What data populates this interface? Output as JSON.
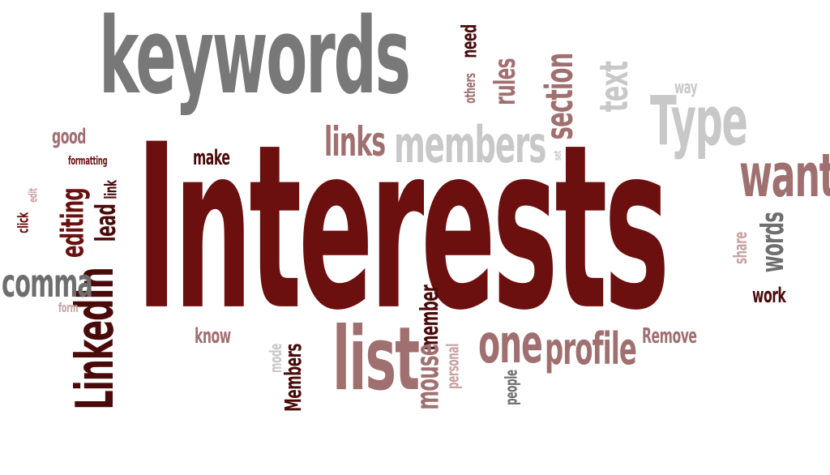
{
  "colors": {
    "gray": "#7a7a7a",
    "light_gray": "#c8c8c8",
    "dark_red": "#6b0f0f",
    "deep_red": "#4a0a0a",
    "rose": "#a07070",
    "pale_rose": "#c9a2a2"
  },
  "words": [
    {
      "text": "keywords",
      "color": "#787878",
      "weight": 200,
      "vertical": false
    },
    {
      "text": "Interests",
      "color": "#6b0f0f",
      "weight": 300,
      "vertical": false
    },
    {
      "text": "need",
      "color": "#4a0a0a",
      "weight": 20,
      "vertical": true
    },
    {
      "text": "others",
      "color": "#a07070",
      "weight": 14,
      "vertical": true
    },
    {
      "text": "rules",
      "color": "#a07070",
      "weight": 28,
      "vertical": true
    },
    {
      "text": "section",
      "color": "#a07070",
      "weight": 40,
      "vertical": true
    },
    {
      "text": "text",
      "color": "#c8c8c8",
      "weight": 40,
      "vertical": true
    },
    {
      "text": "way",
      "color": "#c8c8c8",
      "weight": 16,
      "vertical": false
    },
    {
      "text": "Type",
      "color": "#c8c8c8",
      "weight": 60,
      "vertical": false
    },
    {
      "text": "links",
      "color": "#a07070",
      "weight": 38,
      "vertical": false
    },
    {
      "text": "members",
      "color": "#c8c8c8",
      "weight": 50,
      "vertical": false
    },
    {
      "text": "set",
      "color": "#c8c8c8",
      "weight": 10,
      "vertical": true
    },
    {
      "text": "want",
      "color": "#a07070",
      "weight": 55,
      "vertical": false
    },
    {
      "text": "good",
      "color": "#a07070",
      "weight": 18,
      "vertical": false
    },
    {
      "text": "formatting",
      "color": "#6b0f0f",
      "weight": 12,
      "vertical": false
    },
    {
      "text": "make",
      "color": "#4a0a0a",
      "weight": 18,
      "vertical": false
    },
    {
      "text": "edit",
      "color": "#c9a2a2",
      "weight": 12,
      "vertical": true
    },
    {
      "text": "click",
      "color": "#6b0f0f",
      "weight": 14,
      "vertical": true
    },
    {
      "text": "editing",
      "color": "#6b0f0f",
      "weight": 28,
      "vertical": true
    },
    {
      "text": "link",
      "color": "#4a0a0a",
      "weight": 16,
      "vertical": true
    },
    {
      "text": "lead",
      "color": "#4a0a0a",
      "weight": 26,
      "vertical": true
    },
    {
      "text": "LinkedIn",
      "color": "#4a0a0a",
      "weight": 55,
      "vertical": true
    },
    {
      "text": "comma",
      "color": "#6e6e6e",
      "weight": 36,
      "vertical": false
    },
    {
      "text": "form",
      "color": "#c9a2a2",
      "weight": 12,
      "vertical": false
    },
    {
      "text": "know",
      "color": "#a07070",
      "weight": 18,
      "vertical": false
    },
    {
      "text": "words",
      "color": "#6e6e6e",
      "weight": 28,
      "vertical": true
    },
    {
      "text": "share",
      "color": "#c9a2a2",
      "weight": 18,
      "vertical": true
    },
    {
      "text": "work",
      "color": "#4a0a0a",
      "weight": 20,
      "vertical": false
    },
    {
      "text": "member",
      "color": "#4a0a0a",
      "weight": 22,
      "vertical": true
    },
    {
      "text": "mode",
      "color": "#c8c8c8",
      "weight": 14,
      "vertical": true
    },
    {
      "text": "Members",
      "color": "#4a0a0a",
      "weight": 20,
      "vertical": true
    },
    {
      "text": "list",
      "color": "#a07070",
      "weight": 80,
      "vertical": false
    },
    {
      "text": "mouse",
      "color": "#a07070",
      "weight": 28,
      "vertical": true
    },
    {
      "text": "personal",
      "color": "#c9a2a2",
      "weight": 14,
      "vertical": true
    },
    {
      "text": "one",
      "color": "#a07070",
      "weight": 46,
      "vertical": false
    },
    {
      "text": "people",
      "color": "#6e6e6e",
      "weight": 14,
      "vertical": true
    },
    {
      "text": "profile",
      "color": "#a07070",
      "weight": 42,
      "vertical": false
    },
    {
      "text": "Remove",
      "color": "#a07070",
      "weight": 20,
      "vertical": false
    }
  ]
}
